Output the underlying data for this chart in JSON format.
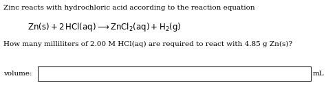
{
  "line1": "Zinc reacts with hydrochloric acid according to the reaction equation",
  "eq_text": "$\\mathrm{Zn(s) + 2\\,HCl(aq) \\longrightarrow ZnCl_2(aq) + H_2(g)}$",
  "line3": "How many milliliters of 2.00 M HCl(aq) are required to react with 4.85 g Zn(s)?",
  "label": "volume:",
  "unit": "mL",
  "bg_color": "#ffffff",
  "text_color": "#000000",
  "box_color": "#000000",
  "fontsize_main": 7.5,
  "fontsize_equation": 8.5
}
